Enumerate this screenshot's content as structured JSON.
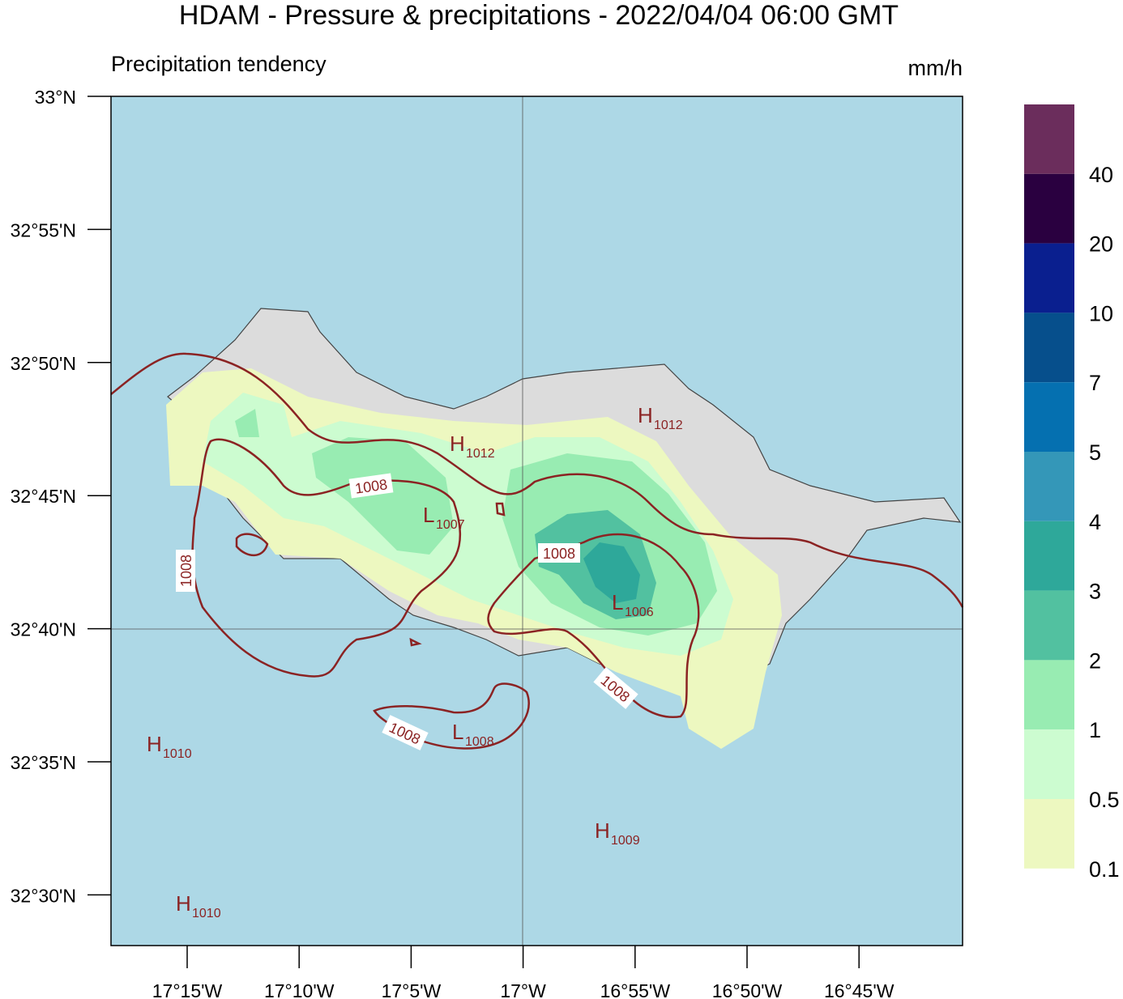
{
  "title": "HDAM - Pressure & precipitations  -  2022/04/04  06:00 GMT",
  "subtitle": "Precipitation tendency",
  "unit": "mm/h",
  "lat_labels": [
    "33°N",
    "32°55'N",
    "32°50'N",
    "32°45'N",
    "32°40'N",
    "32°35'N",
    "32°30'N"
  ],
  "lon_labels": [
    "17°15'W",
    "17°10'W",
    "17°5'W",
    "17°W",
    "16°55'W",
    "16°50'W",
    "16°45'W"
  ],
  "legend": {
    "labels": [
      "40",
      "20",
      "10",
      "7",
      "5",
      "4",
      "3",
      "2",
      "1",
      "0.5",
      "0.1"
    ],
    "colors": [
      "#6b2d5c",
      "#2a0040",
      "#0a1f8f",
      "#064f8c",
      "#0570b0",
      "#3497b8",
      "#2ea89a",
      "#52c1a0",
      "#98ecb2",
      "#ccfcd0",
      "#edf8c0"
    ]
  },
  "pressure_centers": [
    {
      "type": "H",
      "value": "1012"
    },
    {
      "type": "L",
      "value": "1007"
    },
    {
      "type": "H",
      "value": "1012"
    },
    {
      "type": "L",
      "value": "1006"
    },
    {
      "type": "L",
      "value": "1008"
    },
    {
      "type": "H",
      "value": "1010"
    },
    {
      "type": "H",
      "value": "1009"
    },
    {
      "type": "H",
      "value": "1010"
    }
  ],
  "contour_labels": [
    "1008",
    "1008",
    "1008",
    "1008",
    "1008"
  ]
}
